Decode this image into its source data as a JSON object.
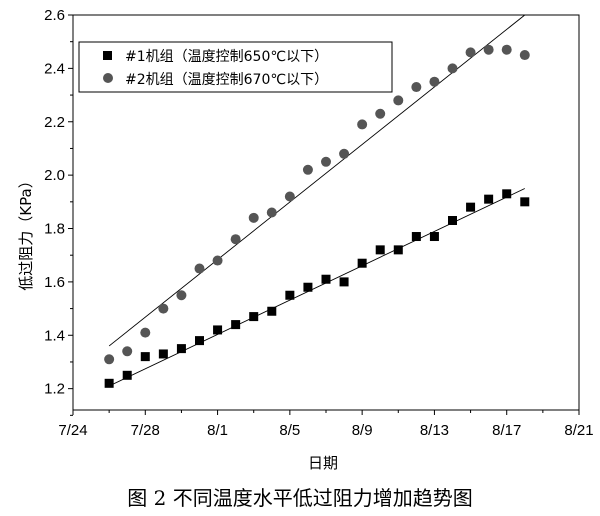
{
  "caption": "图 2  不同温度水平低过阻力增加趋势图",
  "chart_data": {
    "type": "scatter",
    "xlabel": "日期",
    "ylabel": "低过阻力（KPa）",
    "x_tick_labels": [
      "7/24",
      "7/28",
      "8/1",
      "8/5",
      "8/9",
      "8/13",
      "8/17",
      "8/21"
    ],
    "y_tick_labels": [
      "1.2",
      "1.4",
      "1.6",
      "1.8",
      "2.0",
      "2.2",
      "2.4",
      "2.6"
    ],
    "xlim": [
      "7/24",
      "8/21"
    ],
    "ylim": [
      1.12,
      2.6
    ],
    "legend_position": "top-left",
    "series": [
      {
        "name": "#1机组（温度控制650℃以下）",
        "marker": "square",
        "color": "#000000",
        "x": [
          "7/26",
          "7/27",
          "7/28",
          "7/29",
          "7/30",
          "7/31",
          "8/1",
          "8/2",
          "8/3",
          "8/4",
          "8/5",
          "8/6",
          "8/7",
          "8/8",
          "8/9",
          "8/10",
          "8/11",
          "8/12",
          "8/13",
          "8/14",
          "8/15",
          "8/16",
          "8/17",
          "8/18"
        ],
        "y": [
          1.22,
          1.25,
          1.32,
          1.33,
          1.35,
          1.38,
          1.42,
          1.44,
          1.47,
          1.49,
          1.55,
          1.58,
          1.61,
          1.6,
          1.67,
          1.72,
          1.72,
          1.77,
          1.77,
          1.83,
          1.88,
          1.91,
          1.93,
          1.9
        ],
        "trend": {
          "x": [
            "7/26",
            "8/18"
          ],
          "y": [
            1.21,
            1.95
          ]
        }
      },
      {
        "name": "#2机组（温度控制670℃以下）",
        "marker": "circle",
        "color": "#000000",
        "x": [
          "7/26",
          "7/27",
          "7/28",
          "7/29",
          "7/30",
          "7/31",
          "8/1",
          "8/2",
          "8/3",
          "8/4",
          "8/5",
          "8/6",
          "8/7",
          "8/8",
          "8/9",
          "8/10",
          "8/11",
          "8/12",
          "8/13",
          "8/14",
          "8/15",
          "8/16",
          "8/17",
          "8/18"
        ],
        "y": [
          1.31,
          1.34,
          1.41,
          1.5,
          1.55,
          1.65,
          1.68,
          1.76,
          1.84,
          1.86,
          1.92,
          2.02,
          2.05,
          2.08,
          2.19,
          2.23,
          2.28,
          2.33,
          2.35,
          2.4,
          2.46,
          2.47,
          2.47,
          2.45
        ],
        "trend": {
          "x": [
            "7/26",
            "8/18"
          ],
          "y": [
            1.36,
            2.6
          ]
        }
      }
    ]
  }
}
